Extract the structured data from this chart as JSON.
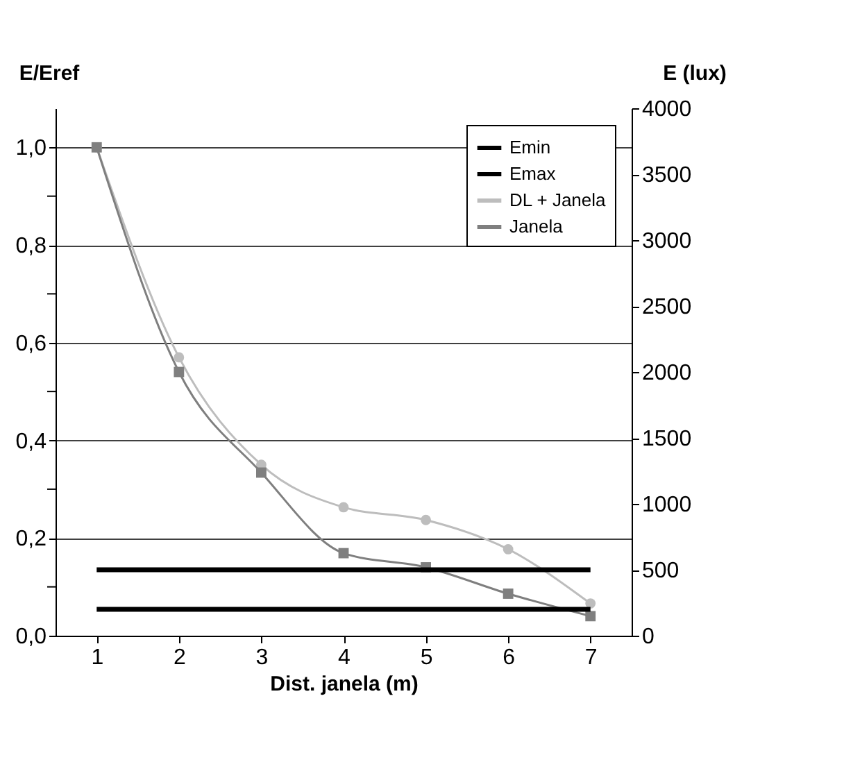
{
  "chart_data": {
    "type": "line",
    "xlabel": "Dist. janela (m)",
    "ylabel": "E/Eref",
    "y2label": "E (lux)",
    "x": [
      1,
      2,
      3,
      4,
      5,
      6,
      7
    ],
    "xlim": [
      0.5,
      7.5
    ],
    "xticks": [
      1,
      2,
      3,
      4,
      5,
      6,
      7
    ],
    "ylim": [
      0,
      1.08
    ],
    "yticks": [
      {
        "value": 0,
        "label": "0,0"
      },
      {
        "value": 0.1,
        "label": null
      },
      {
        "value": 0.2,
        "label": "0,2"
      },
      {
        "value": 0.3,
        "label": null
      },
      {
        "value": 0.4,
        "label": "0,4"
      },
      {
        "value": 0.5,
        "label": null
      },
      {
        "value": 0.6,
        "label": "0,6"
      },
      {
        "value": 0.7,
        "label": null
      },
      {
        "value": 0.8,
        "label": "0,8"
      },
      {
        "value": 0.9,
        "label": null
      },
      {
        "value": 1.0,
        "label": "1,0"
      }
    ],
    "y2lim": [
      0,
      4000
    ],
    "y2ticks": [
      0,
      500,
      1000,
      1500,
      2000,
      2500,
      3000,
      3500,
      4000
    ],
    "grid": "y",
    "legend": "top right",
    "line_style": "solid",
    "series": [
      {
        "name": "Emin",
        "color": "#000000",
        "axis": "y2",
        "marker": "none",
        "values": [
          200,
          200,
          200,
          200,
          200,
          200,
          200
        ]
      },
      {
        "name": "Emax",
        "color": "#000000",
        "axis": "y2",
        "marker": "none",
        "values": [
          500,
          500,
          500,
          500,
          500,
          500,
          500
        ]
      },
      {
        "name": "DL + Janela",
        "color": "#bdbdbd",
        "marker": "circle",
        "values": [
          1.0,
          0.57,
          0.35,
          0.263,
          0.237,
          0.177,
          0.066
        ]
      },
      {
        "name": "Janela",
        "color": "#7f7f7f",
        "marker": "square",
        "values": [
          1.0,
          0.54,
          0.334,
          0.169,
          0.14,
          0.086,
          0.04
        ]
      }
    ]
  }
}
